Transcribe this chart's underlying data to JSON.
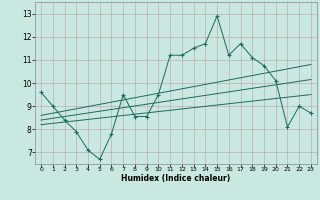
{
  "bg_color": "#c8e8e0",
  "line_color": "#1a6b5a",
  "xlabel": "Humidex (Indice chaleur)",
  "xlim": [
    -0.5,
    23.5
  ],
  "ylim": [
    6.5,
    13.5
  ],
  "xticks": [
    0,
    1,
    2,
    3,
    4,
    5,
    6,
    7,
    8,
    9,
    10,
    11,
    12,
    13,
    14,
    15,
    16,
    17,
    18,
    19,
    20,
    21,
    22,
    23
  ],
  "yticks": [
    7,
    8,
    9,
    10,
    11,
    12,
    13
  ],
  "line1_x": [
    0,
    1,
    2,
    3,
    4,
    5,
    6,
    7,
    8,
    9,
    10,
    11,
    12,
    13,
    14,
    15,
    16,
    17,
    18,
    19,
    20,
    21,
    22,
    23
  ],
  "line1_y": [
    9.6,
    9.0,
    8.4,
    7.9,
    7.1,
    6.7,
    7.8,
    9.5,
    8.55,
    8.55,
    9.5,
    11.2,
    11.2,
    11.5,
    11.7,
    12.9,
    11.2,
    11.7,
    11.1,
    10.75,
    10.1,
    8.1,
    9.0,
    8.7
  ],
  "line2_x": [
    0,
    23
  ],
  "line2_y": [
    8.6,
    10.8
  ],
  "line3_x": [
    0,
    23
  ],
  "line3_y": [
    8.4,
    10.15
  ],
  "line4_x": [
    0,
    23
  ],
  "line4_y": [
    8.2,
    9.5
  ]
}
